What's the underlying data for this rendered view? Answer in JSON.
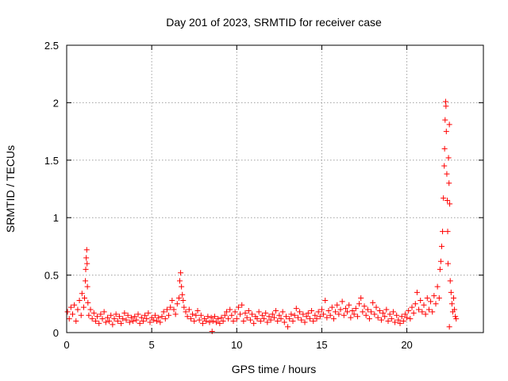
{
  "chart_data": {
    "type": "scatter",
    "title": "Day 201 of 2023, SRMTID for receiver case",
    "xlabel": "GPS time / hours",
    "ylabel": "SRMTID / TECUs",
    "xlim": [
      0,
      24.5
    ],
    "ylim": [
      0,
      2.5
    ],
    "x_ticks": [
      0,
      5,
      10,
      15,
      20
    ],
    "x_tick_labels": [
      "0",
      "5",
      "10",
      "15",
      "20"
    ],
    "y_ticks": [
      0,
      0.5,
      1,
      1.5,
      2,
      2.5
    ],
    "y_tick_labels": [
      "0",
      "0.5",
      "1",
      "1.5",
      "2",
      "2.5"
    ],
    "grid": true,
    "marker": "plus",
    "series": [
      {
        "name": "SRMTID",
        "color": "#ff0000",
        "points": [
          [
            0.05,
            0.18
          ],
          [
            0.15,
            0.12
          ],
          [
            0.25,
            0.22
          ],
          [
            0.35,
            0.16
          ],
          [
            0.45,
            0.24
          ],
          [
            0.55,
            0.1
          ],
          [
            0.65,
            0.2
          ],
          [
            0.75,
            0.28
          ],
          [
            0.85,
            0.15
          ],
          [
            0.9,
            0.34
          ],
          [
            1.0,
            0.22
          ],
          [
            1.05,
            0.3
          ],
          [
            1.1,
            0.45
          ],
          [
            1.12,
            0.55
          ],
          [
            1.15,
            0.65
          ],
          [
            1.18,
            0.72
          ],
          [
            1.2,
            0.6
          ],
          [
            1.22,
            0.4
          ],
          [
            1.25,
            0.26
          ],
          [
            1.3,
            0.15
          ],
          [
            1.4,
            0.2
          ],
          [
            1.5,
            0.12
          ],
          [
            1.6,
            0.17
          ],
          [
            1.7,
            0.1
          ],
          [
            1.8,
            0.14
          ],
          [
            1.9,
            0.08
          ],
          [
            2.0,
            0.16
          ],
          [
            2.1,
            0.12
          ],
          [
            2.2,
            0.18
          ],
          [
            2.3,
            0.09
          ],
          [
            2.4,
            0.13
          ],
          [
            2.5,
            0.1
          ],
          [
            2.6,
            0.15
          ],
          [
            2.7,
            0.07
          ],
          [
            2.8,
            0.12
          ],
          [
            2.9,
            0.16
          ],
          [
            3.0,
            0.1
          ],
          [
            3.1,
            0.14
          ],
          [
            3.2,
            0.08
          ],
          [
            3.3,
            0.12
          ],
          [
            3.4,
            0.17
          ],
          [
            3.5,
            0.11
          ],
          [
            3.6,
            0.15
          ],
          [
            3.7,
            0.09
          ],
          [
            3.8,
            0.13
          ],
          [
            3.9,
            0.1
          ],
          [
            4.0,
            0.14
          ],
          [
            4.1,
            0.11
          ],
          [
            4.2,
            0.16
          ],
          [
            4.3,
            0.08
          ],
          [
            4.4,
            0.13
          ],
          [
            4.5,
            0.1
          ],
          [
            4.6,
            0.15
          ],
          [
            4.7,
            0.12
          ],
          [
            4.8,
            0.17
          ],
          [
            4.9,
            0.09
          ],
          [
            5.0,
            0.13
          ],
          [
            5.1,
            0.11
          ],
          [
            5.2,
            0.15
          ],
          [
            5.3,
            0.1
          ],
          [
            5.4,
            0.13
          ],
          [
            5.5,
            0.09
          ],
          [
            5.6,
            0.14
          ],
          [
            5.7,
            0.18
          ],
          [
            5.8,
            0.12
          ],
          [
            5.9,
            0.2
          ],
          [
            6.0,
            0.15
          ],
          [
            6.1,
            0.22
          ],
          [
            6.2,
            0.28
          ],
          [
            6.3,
            0.2
          ],
          [
            6.4,
            0.16
          ],
          [
            6.5,
            0.25
          ],
          [
            6.6,
            0.3
          ],
          [
            6.65,
            0.45
          ],
          [
            6.7,
            0.52
          ],
          [
            6.75,
            0.4
          ],
          [
            6.8,
            0.33
          ],
          [
            6.85,
            0.28
          ],
          [
            6.9,
            0.22
          ],
          [
            7.0,
            0.18
          ],
          [
            7.1,
            0.14
          ],
          [
            7.2,
            0.2
          ],
          [
            7.3,
            0.12
          ],
          [
            7.4,
            0.16
          ],
          [
            7.5,
            0.1
          ],
          [
            7.6,
            0.15
          ],
          [
            7.7,
            0.19
          ],
          [
            7.8,
            0.11
          ],
          [
            7.9,
            0.15
          ],
          [
            8.0,
            0.08
          ],
          [
            8.1,
            0.12
          ],
          [
            8.2,
            0.1
          ],
          [
            8.3,
            0.14
          ],
          [
            8.4,
            0.09
          ],
          [
            8.5,
            0.13
          ],
          [
            8.55,
            0.01
          ],
          [
            8.6,
            0.1
          ],
          [
            8.7,
            0.14
          ],
          [
            8.8,
            0.09
          ],
          [
            8.9,
            0.12
          ],
          [
            9.0,
            0.08
          ],
          [
            9.1,
            0.13
          ],
          [
            9.2,
            0.1
          ],
          [
            9.3,
            0.15
          ],
          [
            9.4,
            0.18
          ],
          [
            9.5,
            0.12
          ],
          [
            9.6,
            0.2
          ],
          [
            9.7,
            0.15
          ],
          [
            9.8,
            0.1
          ],
          [
            9.9,
            0.18
          ],
          [
            10.0,
            0.12
          ],
          [
            10.1,
            0.22
          ],
          [
            10.2,
            0.16
          ],
          [
            10.3,
            0.24
          ],
          [
            10.4,
            0.1
          ],
          [
            10.5,
            0.17
          ],
          [
            10.6,
            0.13
          ],
          [
            10.7,
            0.19
          ],
          [
            10.8,
            0.11
          ],
          [
            10.9,
            0.16
          ],
          [
            11.0,
            0.08
          ],
          [
            11.1,
            0.14
          ],
          [
            11.2,
            0.12
          ],
          [
            11.3,
            0.18
          ],
          [
            11.4,
            0.1
          ],
          [
            11.5,
            0.15
          ],
          [
            11.6,
            0.12
          ],
          [
            11.7,
            0.17
          ],
          [
            11.8,
            0.09
          ],
          [
            11.9,
            0.14
          ],
          [
            12.0,
            0.11
          ],
          [
            12.1,
            0.16
          ],
          [
            12.2,
            0.13
          ],
          [
            12.3,
            0.19
          ],
          [
            12.4,
            0.1
          ],
          [
            12.5,
            0.15
          ],
          [
            12.6,
            0.12
          ],
          [
            12.7,
            0.18
          ],
          [
            12.8,
            0.09
          ],
          [
            12.9,
            0.14
          ],
          [
            13.0,
            0.05
          ],
          [
            13.1,
            0.12
          ],
          [
            13.2,
            0.16
          ],
          [
            13.3,
            0.1
          ],
          [
            13.4,
            0.15
          ],
          [
            13.5,
            0.21
          ],
          [
            13.6,
            0.13
          ],
          [
            13.7,
            0.18
          ],
          [
            13.8,
            0.11
          ],
          [
            13.9,
            0.16
          ],
          [
            14.0,
            0.09
          ],
          [
            14.1,
            0.14
          ],
          [
            14.2,
            0.17
          ],
          [
            14.3,
            0.12
          ],
          [
            14.4,
            0.19
          ],
          [
            14.5,
            0.1
          ],
          [
            14.6,
            0.15
          ],
          [
            14.7,
            0.12
          ],
          [
            14.8,
            0.18
          ],
          [
            14.9,
            0.14
          ],
          [
            15.0,
            0.2
          ],
          [
            15.1,
            0.16
          ],
          [
            15.2,
            0.28
          ],
          [
            15.3,
            0.13
          ],
          [
            15.4,
            0.19
          ],
          [
            15.5,
            0.15
          ],
          [
            15.6,
            0.22
          ],
          [
            15.7,
            0.12
          ],
          [
            15.8,
            0.18
          ],
          [
            15.9,
            0.24
          ],
          [
            16.0,
            0.16
          ],
          [
            16.1,
            0.2
          ],
          [
            16.2,
            0.27
          ],
          [
            16.3,
            0.15
          ],
          [
            16.4,
            0.21
          ],
          [
            16.5,
            0.18
          ],
          [
            16.6,
            0.24
          ],
          [
            16.7,
            0.13
          ],
          [
            16.8,
            0.19
          ],
          [
            16.9,
            0.16
          ],
          [
            17.0,
            0.21
          ],
          [
            17.1,
            0.14
          ],
          [
            17.2,
            0.25
          ],
          [
            17.3,
            0.3
          ],
          [
            17.4,
            0.18
          ],
          [
            17.5,
            0.23
          ],
          [
            17.6,
            0.15
          ],
          [
            17.7,
            0.2
          ],
          [
            17.8,
            0.12
          ],
          [
            17.9,
            0.18
          ],
          [
            18.0,
            0.26
          ],
          [
            18.1,
            0.16
          ],
          [
            18.2,
            0.22
          ],
          [
            18.3,
            0.13
          ],
          [
            18.4,
            0.19
          ],
          [
            18.5,
            0.11
          ],
          [
            18.6,
            0.17
          ],
          [
            18.7,
            0.14
          ],
          [
            18.8,
            0.2
          ],
          [
            18.9,
            0.1
          ],
          [
            19.0,
            0.16
          ],
          [
            19.1,
            0.12
          ],
          [
            19.2,
            0.18
          ],
          [
            19.3,
            0.09
          ],
          [
            19.4,
            0.15
          ],
          [
            19.5,
            0.11
          ],
          [
            19.6,
            0.08
          ],
          [
            19.7,
            0.14
          ],
          [
            19.8,
            0.1
          ],
          [
            19.9,
            0.16
          ],
          [
            20.0,
            0.13
          ],
          [
            20.1,
            0.19
          ],
          [
            20.2,
            0.12
          ],
          [
            20.3,
            0.22
          ],
          [
            20.4,
            0.17
          ],
          [
            20.5,
            0.25
          ],
          [
            20.6,
            0.35
          ],
          [
            20.7,
            0.2
          ],
          [
            20.8,
            0.28
          ],
          [
            20.9,
            0.18
          ],
          [
            21.0,
            0.24
          ],
          [
            21.1,
            0.16
          ],
          [
            21.2,
            0.3
          ],
          [
            21.3,
            0.2
          ],
          [
            21.4,
            0.27
          ],
          [
            21.5,
            0.18
          ],
          [
            21.6,
            0.32
          ],
          [
            21.7,
            0.25
          ],
          [
            21.8,
            0.4
          ],
          [
            21.9,
            0.3
          ],
          [
            21.95,
            0.55
          ],
          [
            22.0,
            0.62
          ],
          [
            22.05,
            0.75
          ],
          [
            22.1,
            0.88
          ],
          [
            22.15,
            1.17
          ],
          [
            22.2,
            1.45
          ],
          [
            22.22,
            1.6
          ],
          [
            22.25,
            1.85
          ],
          [
            22.28,
            2.01
          ],
          [
            22.3,
            1.97
          ],
          [
            22.32,
            1.75
          ],
          [
            22.35,
            1.38
          ],
          [
            22.38,
            1.15
          ],
          [
            22.4,
            0.88
          ],
          [
            22.42,
            0.6
          ],
          [
            22.45,
            1.52
          ],
          [
            22.48,
            1.3
          ],
          [
            22.5,
            1.81
          ],
          [
            22.52,
            1.12
          ],
          [
            22.55,
            0.45
          ],
          [
            22.6,
            0.35
          ],
          [
            22.65,
            0.25
          ],
          [
            22.7,
            0.18
          ],
          [
            22.75,
            0.3
          ],
          [
            22.8,
            0.2
          ],
          [
            22.85,
            0.14
          ],
          [
            22.9,
            0.12
          ],
          [
            22.5,
            0.05
          ]
        ]
      }
    ]
  }
}
